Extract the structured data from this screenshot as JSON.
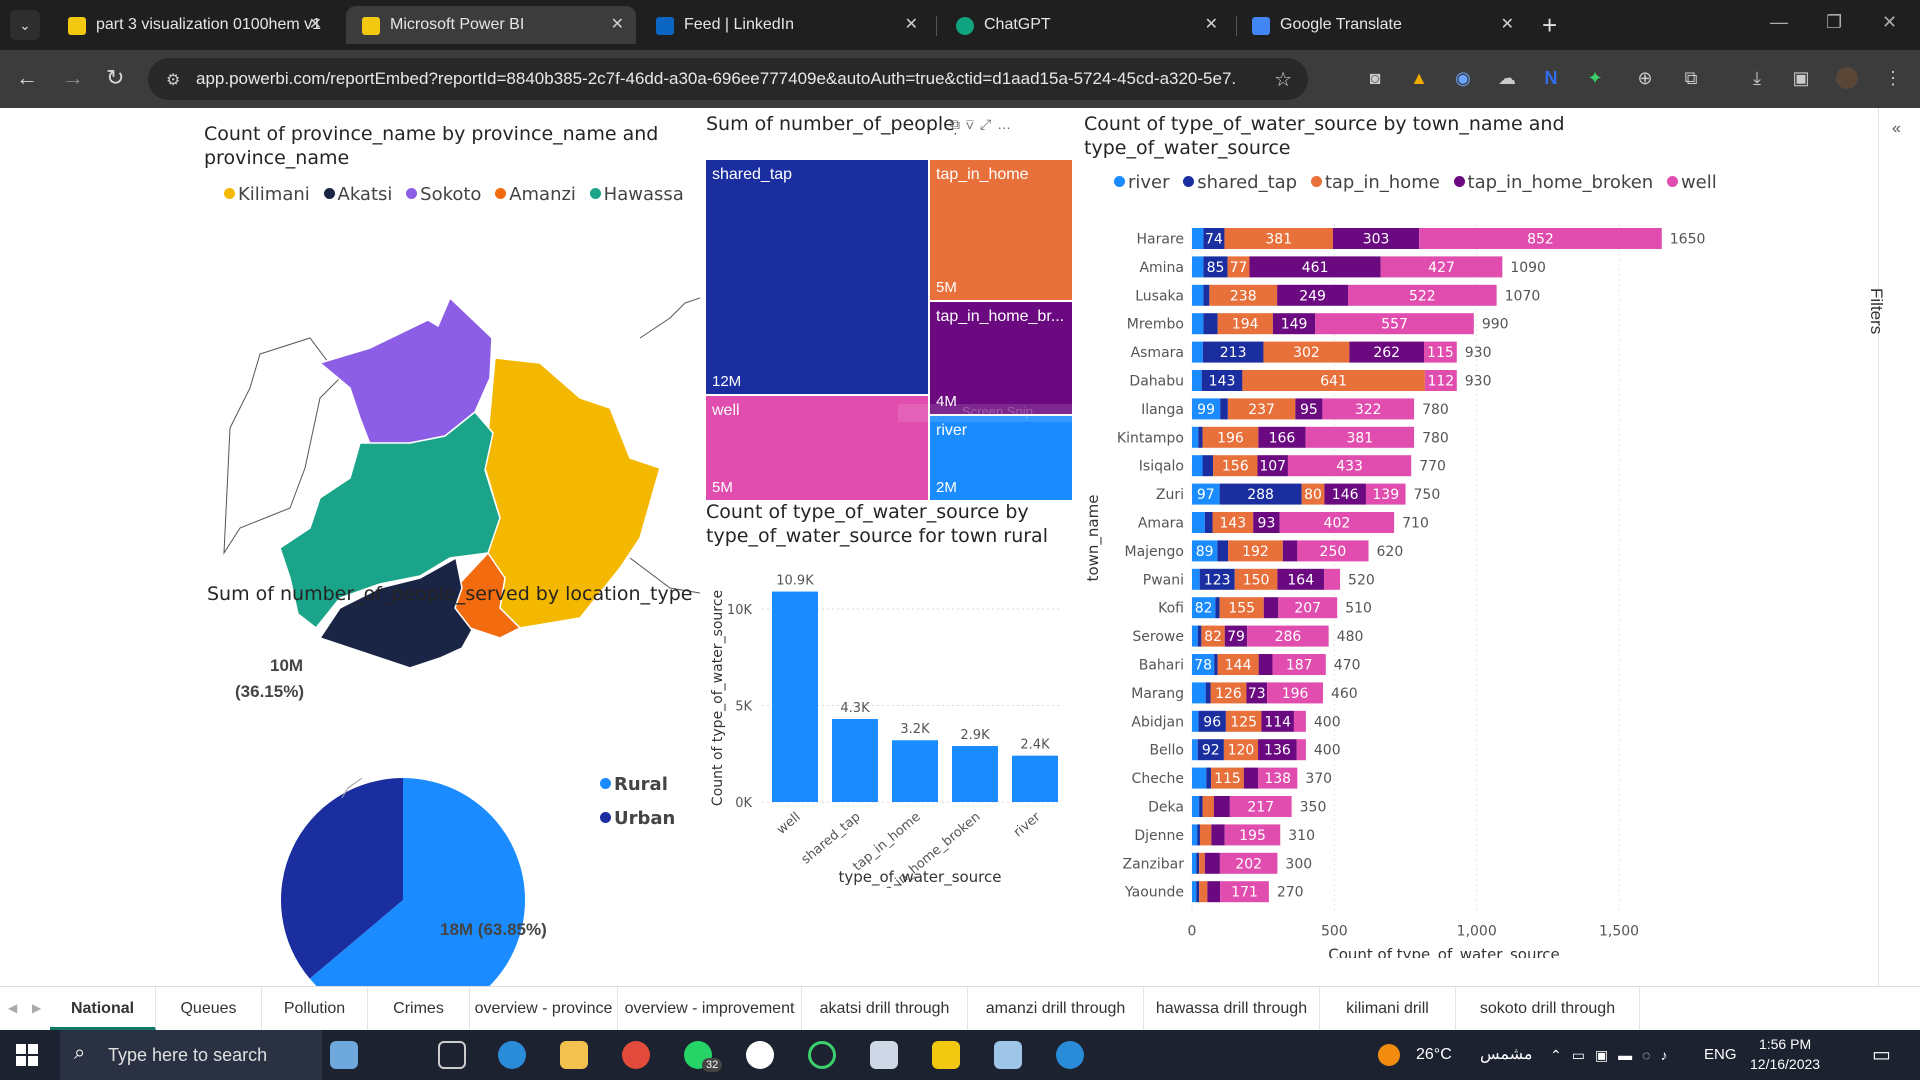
{
  "browser": {
    "tabs": [
      {
        "title": "part 3 visualization 0100hem v1",
        "icon_color": "#f2c811",
        "active": false
      },
      {
        "title": "Microsoft Power BI",
        "icon_color": "#f2c811",
        "active": true
      },
      {
        "title": "Feed | LinkedIn",
        "icon_color": "#0a66c2",
        "active": false
      },
      {
        "title": "ChatGPT",
        "icon_color": "#10a37f",
        "active": false
      },
      {
        "title": "Google Translate",
        "icon_color": "#4285f4",
        "active": false
      }
    ],
    "url": "app.powerbi.com/reportEmbed?reportId=8840b385-2c7f-46dd-a30a-696ee777409e&autoAuth=true&ctid=d1aad15a-5724-45cd-a320-5e7..."
  },
  "report": {
    "map": {
      "title": "Count of province_name by province_name and province_name",
      "legend": [
        {
          "name": "Kilimani",
          "color": "#f5b800"
        },
        {
          "name": "Akatsi",
          "color": "#1a2444"
        },
        {
          "name": "Sokoto",
          "color": "#8c5ee6"
        },
        {
          "name": "Amanzi",
          "color": "#f26b0f"
        },
        {
          "name": "Hawassa",
          "color": "#1aa58a"
        }
      ]
    },
    "treemap": {
      "title": "Sum of number_of_people_served by type_of_water_source",
      "tiles": [
        {
          "label": "shared_tap",
          "value": "12M",
          "color": "#1a2ea0"
        },
        {
          "label": "tap_in_home",
          "value": "5M",
          "color": "#e8703a"
        },
        {
          "label": "tap_in_home_br...",
          "value": "4M",
          "color": "#6b0a80"
        },
        {
          "label": "well",
          "value": "5M",
          "color": "#e04dae"
        },
        {
          "label": "river",
          "value": "2M",
          "color": "#1a8cff"
        }
      ],
      "watermark": "Screen Snip"
    },
    "rural_bar": {
      "title": "Count of type_of_water_source by type_of_water_source for town rural",
      "xlabel": "type_of_water_source",
      "ylabel": "Count of type_of_water_source"
    },
    "stacked": {
      "title": "Count of type_of_water_source by town_name and type_of_water_source",
      "xlabel": "Count of type_of_water_source",
      "ylabel": "town_name",
      "legend": [
        {
          "name": "river",
          "color": "#1a8cff"
        },
        {
          "name": "shared_tap",
          "color": "#1a2ea0"
        },
        {
          "name": "tap_in_home",
          "color": "#e8703a"
        },
        {
          "name": "tap_in_home_broken",
          "color": "#6b0a80"
        },
        {
          "name": "well",
          "color": "#e04dae"
        }
      ]
    },
    "pie": {
      "title": "Sum of number_of_people_served by location_type",
      "urban_label_value": "10M",
      "urban_label_pct": "(36.15%)",
      "rural_label": "18M (63.85%)",
      "legend": [
        {
          "name": "Rural",
          "color": "#1a8cff"
        },
        {
          "name": "Urban",
          "color": "#1a2ea0"
        }
      ]
    },
    "filters_label": "Filters"
  },
  "chart_data": [
    {
      "type": "bar",
      "title": "Count of type_of_water_source by type_of_water_source for town rural",
      "xlabel": "type_of_water_source",
      "ylabel": "Count of type_of_water_source",
      "categories": [
        "well",
        "shared_tap",
        "tap_in_home",
        "tap_in_home_broken",
        "river"
      ],
      "values": [
        10900,
        4300,
        3200,
        2900,
        2400
      ],
      "data_labels": [
        "10.9K",
        "4.3K",
        "3.2K",
        "2.9K",
        "2.4K"
      ],
      "yticks": [
        "0K",
        "5K",
        "10K"
      ],
      "ylim": [
        0,
        11500
      ],
      "color": "#1a8cff"
    },
    {
      "type": "bar",
      "orientation": "horizontal-stacked",
      "title": "Count of type_of_water_source by town_name and type_of_water_source",
      "xlabel": "Count of type_of_water_source",
      "ylabel": "town_name",
      "xticks": [
        "0",
        "500",
        "1,000",
        "1,500"
      ],
      "xlim": [
        0,
        1700
      ],
      "series_names": [
        "river",
        "shared_tap",
        "tap_in_home",
        "tap_in_home_broken",
        "well"
      ],
      "rows": [
        {
          "town": "Harare",
          "values": [
            40,
            74,
            381,
            303,
            852
          ],
          "total": "1650"
        },
        {
          "town": "Amina",
          "values": [
            40,
            85,
            77,
            461,
            427
          ],
          "total": "1090"
        },
        {
          "town": "Lusaka",
          "values": [
            40,
            21,
            238,
            249,
            522
          ],
          "total": "1070"
        },
        {
          "town": "Mrembo",
          "values": [
            40,
            50,
            194,
            149,
            557
          ],
          "total": "990"
        },
        {
          "town": "Asmara",
          "values": [
            38,
            213,
            302,
            262,
            115
          ],
          "total": "930"
        },
        {
          "town": "Dahabu",
          "values": [
            34,
            143,
            641,
            0,
            112
          ],
          "total": "930"
        },
        {
          "town": "Ilanga",
          "values": [
            99,
            27,
            237,
            95,
            322
          ],
          "total": "780"
        },
        {
          "town": "Kintampo",
          "values": [
            22,
            15,
            196,
            166,
            381
          ],
          "total": "780"
        },
        {
          "town": "Isiqalo",
          "values": [
            37,
            37,
            156,
            107,
            433
          ],
          "total": "770"
        },
        {
          "town": "Zuri",
          "values": [
            97,
            288,
            80,
            146,
            139
          ],
          "total": "750"
        },
        {
          "town": "Amara",
          "values": [
            45,
            27,
            143,
            93,
            402
          ],
          "total": "710"
        },
        {
          "town": "Majengo",
          "values": [
            89,
            38,
            192,
            51,
            250
          ],
          "total": "620"
        },
        {
          "town": "Pwani",
          "values": [
            27,
            123,
            150,
            164,
            56
          ],
          "total": "520"
        },
        {
          "town": "Kofi",
          "values": [
            82,
            15,
            155,
            51,
            207
          ],
          "total": "510"
        },
        {
          "town": "Serowe",
          "values": [
            20,
            13,
            82,
            79,
            286
          ],
          "total": "480"
        },
        {
          "town": "Bahari",
          "values": [
            78,
            12,
            144,
            49,
            187
          ],
          "total": "470"
        },
        {
          "town": "Marang",
          "values": [
            48,
            17,
            126,
            73,
            196
          ],
          "total": "460"
        },
        {
          "town": "Abidjan",
          "values": [
            23,
            96,
            125,
            114,
            42
          ],
          "total": "400"
        },
        {
          "town": "Bello",
          "values": [
            20,
            92,
            120,
            136,
            32
          ],
          "total": "400"
        },
        {
          "town": "Cheche",
          "values": [
            50,
            17,
            115,
            50,
            138
          ],
          "total": "370"
        },
        {
          "town": "Deka",
          "values": [
            25,
            12,
            40,
            56,
            217
          ],
          "total": "350"
        },
        {
          "town": "Djenne",
          "values": [
            18,
            10,
            40,
            47,
            195
          ],
          "total": "310"
        },
        {
          "town": "Zanzibar",
          "values": [
            15,
            10,
            20,
            53,
            202
          ],
          "total": "300"
        },
        {
          "town": "Yaounde",
          "values": [
            15,
            10,
            29,
            45,
            171
          ],
          "total": "270"
        }
      ],
      "min_label_value": 70
    },
    {
      "type": "pie",
      "title": "Sum of number_of_people_served by location_type",
      "labels": [
        "Rural",
        "Urban"
      ],
      "values": [
        63.85,
        36.15
      ],
      "value_labels": [
        "18M (63.85%)",
        "10M (36.15%)"
      ]
    }
  ],
  "page_tabs": [
    {
      "label": "National",
      "active": true
    },
    {
      "label": "Queues"
    },
    {
      "label": "Pollution"
    },
    {
      "label": "Crimes"
    },
    {
      "label": "overview - province"
    },
    {
      "label": "overview - improvement"
    },
    {
      "label": "akatsi drill through"
    },
    {
      "label": "amanzi drill through"
    },
    {
      "label": "hawassa drill through"
    },
    {
      "label": "kilimani drill through"
    },
    {
      "label": "sokoto drill through"
    }
  ],
  "taskbar": {
    "search_placeholder": "Type here to search",
    "whatsapp_badge": "32",
    "weather": "26°C",
    "weather_text": "مشمس",
    "language": "ENG",
    "time": "1:56 PM",
    "date": "12/16/2023"
  }
}
